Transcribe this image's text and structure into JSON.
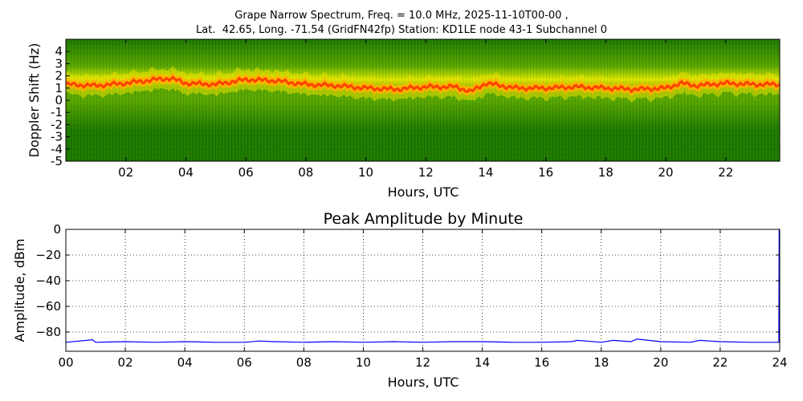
{
  "chart_data": [
    {
      "type": "heatmap",
      "title_line1": "Grape Narrow Spectrum, Freq. = 10.0 MHz, 2025-11-10T00-00 ,",
      "title_line2": "Lat.  42.65, Long. -71.54 (GridFN42fp) Station: KD1LE node 43-1 Subchannel 0",
      "xlabel": "Hours, UTC",
      "ylabel": "Doppler Shift (Hz)",
      "xlim": [
        0,
        23.8
      ],
      "ylim": [
        -5,
        5
      ],
      "x_ticks": [
        "02",
        "04",
        "06",
        "08",
        "10",
        "12",
        "14",
        "16",
        "18",
        "20",
        "22"
      ],
      "x_tick_values": [
        2,
        4,
        6,
        8,
        10,
        12,
        14,
        16,
        18,
        20,
        22
      ],
      "y_ticks": [
        "4",
        "3",
        "2",
        "1",
        "0",
        "-1",
        "-2",
        "-3",
        "-4",
        "-5"
      ],
      "y_tick_values": [
        4,
        3,
        2,
        1,
        0,
        -1,
        -2,
        -3,
        -4,
        -5
      ],
      "colormap": [
        "#1e7a00",
        "#5aa800",
        "#d8e800",
        "#ffb000",
        "#ff4000"
      ],
      "ridge_hours": [
        0,
        1,
        2,
        3,
        3.5,
        4,
        5,
        6,
        7,
        8,
        9,
        10,
        11,
        12,
        13,
        13.5,
        14,
        15,
        16,
        17,
        18,
        19,
        20,
        20.5,
        21,
        22,
        23,
        23.8
      ],
      "ridge_doppler_hz": [
        1.3,
        1.2,
        1.4,
        1.7,
        1.8,
        1.4,
        1.3,
        1.7,
        1.6,
        1.3,
        1.2,
        1.0,
        0.9,
        1.1,
        1.1,
        0.7,
        1.4,
        1.0,
        1.0,
        1.1,
        1.0,
        0.9,
        1.0,
        1.4,
        1.2,
        1.4,
        1.3,
        1.3
      ]
    },
    {
      "type": "line",
      "title": "Peak Amplitude by Minute",
      "xlabel": "Hours, UTC",
      "ylabel": "Amplitude, dBm",
      "xlim": [
        0,
        24
      ],
      "ylim": [
        -95,
        0
      ],
      "grid": true,
      "x_ticks": [
        "00",
        "02",
        "04",
        "06",
        "08",
        "10",
        "12",
        "14",
        "16",
        "18",
        "20",
        "22",
        "24"
      ],
      "x_tick_values": [
        0,
        2,
        4,
        6,
        8,
        10,
        12,
        14,
        16,
        18,
        20,
        22,
        24
      ],
      "y_ticks": [
        "0",
        "−20",
        "−40",
        "−60",
        "−80"
      ],
      "y_tick_values": [
        0,
        -20,
        -40,
        -60,
        -80
      ],
      "series": [
        {
          "color": "#0000ff",
          "x": [
            0,
            0.9,
            1,
            2,
            3,
            4,
            5,
            6,
            6.5,
            7,
            8,
            9,
            10,
            11,
            12,
            13,
            14,
            15,
            16,
            17,
            17.2,
            18,
            18.4,
            19,
            19.2,
            20,
            21,
            21.3,
            22,
            23,
            23.97,
            23.98,
            24
          ],
          "y": [
            -88,
            -86,
            -88,
            -87.5,
            -88,
            -87.5,
            -88,
            -88,
            -87,
            -87.5,
            -88,
            -87.5,
            -88,
            -87.5,
            -88,
            -87.5,
            -87.5,
            -88,
            -88,
            -87.5,
            -86.5,
            -88,
            -86.5,
            -87.5,
            -85.5,
            -87.5,
            -88,
            -86.5,
            -87.5,
            -88,
            -88,
            0,
            0
          ]
        }
      ]
    }
  ]
}
